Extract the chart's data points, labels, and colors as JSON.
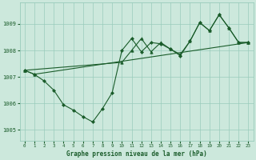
{
  "bg_color": "#cce8dc",
  "grid_color": "#99ccbb",
  "line_color": "#1a5c2a",
  "xlabel": "Graphe pression niveau de la mer (hPa)",
  "xlim": [
    -0.5,
    23.5
  ],
  "ylim": [
    1004.6,
    1009.8
  ],
  "yticks": [
    1005,
    1006,
    1007,
    1008,
    1009
  ],
  "xticks": [
    0,
    1,
    2,
    3,
    4,
    5,
    6,
    7,
    8,
    9,
    10,
    11,
    12,
    13,
    14,
    15,
    16,
    17,
    18,
    19,
    20,
    21,
    22,
    23
  ],
  "line1_x": [
    0,
    1,
    23
  ],
  "line1_y": [
    1007.25,
    1007.1,
    1008.3
  ],
  "line2_x": [
    0,
    1,
    2,
    3,
    4,
    5,
    6,
    7,
    8,
    9,
    10,
    11,
    12,
    13,
    14,
    15,
    16,
    17,
    18,
    19,
    20,
    21,
    22,
    23
  ],
  "line2_y": [
    1007.25,
    1007.1,
    1006.85,
    1006.5,
    1005.95,
    1005.75,
    1005.5,
    1005.3,
    1005.8,
    1006.4,
    1008.0,
    1008.45,
    1007.95,
    1008.3,
    1008.25,
    1008.05,
    1007.8,
    1008.35,
    1009.05,
    1008.75,
    1009.35,
    1008.85,
    1008.3,
    1008.3
  ],
  "line3_x": [
    0,
    10,
    11,
    12,
    13,
    14,
    15,
    16,
    17,
    18,
    19,
    20,
    21,
    22,
    23
  ],
  "line3_y": [
    1007.25,
    1007.55,
    1008.0,
    1008.45,
    1007.95,
    1008.3,
    1008.05,
    1007.85,
    1008.35,
    1009.05,
    1008.75,
    1009.35,
    1008.85,
    1008.3,
    1008.3
  ]
}
